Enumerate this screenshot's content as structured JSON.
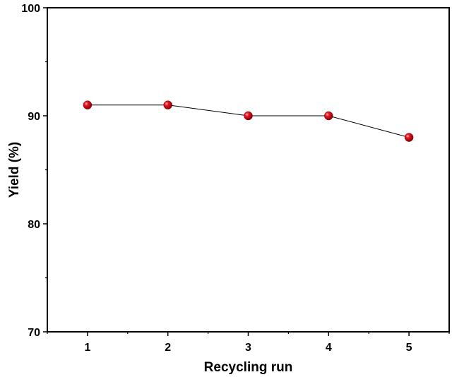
{
  "chart_data": {
    "type": "line",
    "title": "",
    "xlabel": "Recycling run",
    "ylabel": "Yield (%)",
    "x": [
      1,
      2,
      3,
      4,
      5
    ],
    "series": [
      {
        "values": [
          91,
          91,
          90,
          90,
          88
        ]
      }
    ],
    "xlim": [
      0.5,
      5.5
    ],
    "ylim": [
      70,
      100
    ],
    "xticks": [
      "1",
      "2",
      "3",
      "4",
      "5"
    ],
    "yticks": [
      "70",
      "80",
      "90",
      "100"
    ],
    "grid": false,
    "legend": "none",
    "colors": {
      "marker": "#e8131f",
      "line": "#000000",
      "axis": "#000000"
    }
  }
}
